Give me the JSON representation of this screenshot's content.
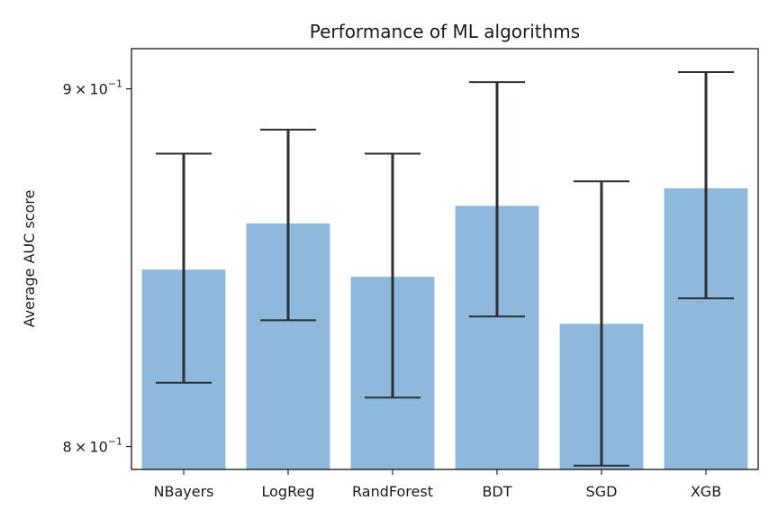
{
  "chart_data": {
    "type": "bar",
    "title": "Performance of ML algorithms",
    "xlabel": "",
    "ylabel": "Average AUC score",
    "yscale": "log",
    "ylim": [
      0.794,
      0.912
    ],
    "grid": false,
    "legend": "none",
    "bar_color": "#8fb9dc",
    "errorbar_color": "#2b2f33",
    "categories": [
      "NBayers",
      "LogReg",
      "RandForest",
      "BDT",
      "SGD",
      "XGB"
    ],
    "values": [
      0.848,
      0.861,
      0.846,
      0.866,
      0.833,
      0.871
    ],
    "error_low": [
      0.817,
      0.834,
      0.813,
      0.835,
      0.795,
      0.84
    ],
    "error_high": [
      0.881,
      0.888,
      0.881,
      0.902,
      0.873,
      0.905
    ],
    "yticks": [
      {
        "value": 0.8,
        "base": "8",
        "mult": "×",
        "exp_base": "10",
        "exp": "−1"
      },
      {
        "value": 0.9,
        "base": "9",
        "mult": "×",
        "exp_base": "10",
        "exp": "−1"
      }
    ]
  }
}
